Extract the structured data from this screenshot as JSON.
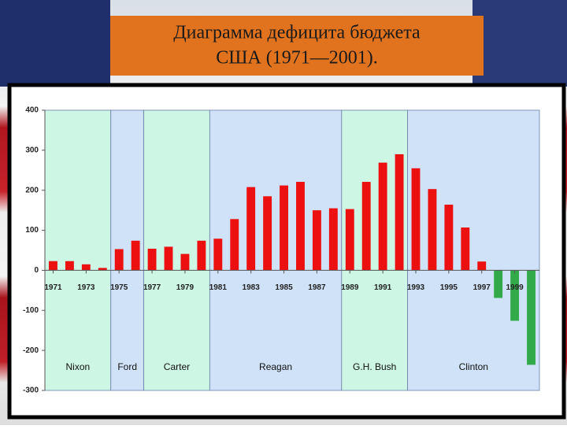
{
  "chart_data": {
    "type": "bar",
    "title": [
      "Диаграмма дефицита бюджета",
      "США (1971—2001)."
    ],
    "x": [
      1971,
      1972,
      1973,
      1974,
      1975,
      1976,
      1977,
      1978,
      1979,
      1980,
      1981,
      1982,
      1983,
      1984,
      1985,
      1986,
      1987,
      1988,
      1989,
      1990,
      1991,
      1992,
      1993,
      1994,
      1995,
      1996,
      1997,
      1998,
      1999,
      2000
    ],
    "values": [
      23,
      23,
      15,
      6,
      53,
      74,
      54,
      59,
      41,
      74,
      79,
      128,
      208,
      185,
      212,
      221,
      150,
      155,
      153,
      221,
      269,
      290,
      255,
      203,
      164,
      107,
      22,
      -69,
      -126,
      -236
    ],
    "color": "#ec1010",
    "negative_color": "#33aa4a",
    "xlim": [
      1970.5,
      2000.5
    ],
    "xticks": [
      1971,
      1973,
      1975,
      1977,
      1979,
      1981,
      1983,
      1985,
      1987,
      1989,
      1991,
      1993,
      1995,
      1997,
      1999
    ],
    "ylim": [
      -300,
      400
    ],
    "yticks": [
      -300,
      -200,
      -100,
      0,
      100,
      200,
      300,
      400
    ],
    "regions": [
      {
        "label": "Nixon",
        "start": 1971,
        "end": 1974,
        "color": "#cdf6e4"
      },
      {
        "label": "Ford",
        "start": 1975,
        "end": 1976,
        "color": "#cfe2f7"
      },
      {
        "label": "Carter",
        "start": 1977,
        "end": 1980,
        "color": "#cdf6e4"
      },
      {
        "label": "Reagan",
        "start": 1981,
        "end": 1988,
        "color": "#cfe2f7"
      },
      {
        "label": "G.H. Bush",
        "start": 1989,
        "end": 1992,
        "color": "#cdf6e4"
      },
      {
        "label": "Clinton",
        "start": 1993,
        "end": 2000,
        "color": "#cfe2f7"
      }
    ]
  }
}
